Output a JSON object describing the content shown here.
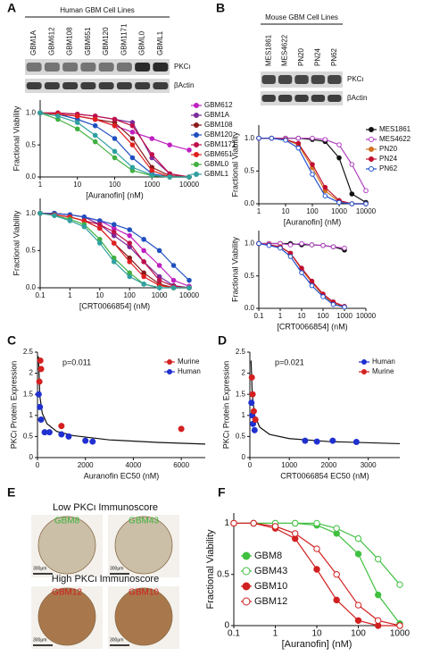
{
  "panel_labels": [
    "A",
    "B",
    "C",
    "D",
    "E",
    "F"
  ],
  "blots": [
    {
      "title": "Human GBM Cell Lines",
      "lanes": [
        "GBM1A",
        "GBM612",
        "GBM108",
        "GBM651",
        "GBM120",
        "GBM1171",
        "GBML0",
        "GBML1"
      ],
      "rows": [
        "PKCι",
        "βActin"
      ]
    },
    {
      "title": "Mouse GBM Cell Lines",
      "lanes": [
        "MES1861",
        "MES4622",
        "PN20",
        "PN24",
        "PN62"
      ],
      "rows": [
        "PKCι",
        "βActin"
      ]
    }
  ],
  "ihc": {
    "groups": [
      {
        "title": "Low PKCι Immunoscore",
        "color": "#3cb43c",
        "samples": [
          "GBM8",
          "GBM43"
        ]
      },
      {
        "title": "High PKCι Immunoscore",
        "color": "#d02020",
        "samples": [
          "GBM12",
          "GBM10"
        ]
      }
    ],
    "scale_bar": "300μm"
  },
  "chart_data": [
    {
      "type": "line",
      "xscale": "log",
      "xlabel": "[Auranofin] (nM)",
      "ylabel": "Fractional Viability",
      "legend": "right",
      "xlim": [
        1,
        10000
      ],
      "xticks": [
        1,
        10,
        100,
        1000,
        10000
      ],
      "ylim": [
        0,
        1.2
      ],
      "yticks": [
        {
          "value": 0,
          "label": "0.0"
        },
        {
          "value": 0.5,
          "label": "0.5"
        },
        {
          "value": 1,
          "label": "1.0"
        }
      ],
      "x": [
        1,
        3,
        10,
        30,
        100,
        300,
        1000,
        3000,
        10000
      ],
      "series": [
        {
          "name": "GBM612",
          "color": "#c020c0",
          "filled": true,
          "values": [
            1.0,
            0.98,
            0.95,
            0.9,
            0.8,
            0.7,
            0.6,
            0.5,
            0.42
          ]
        },
        {
          "name": "GBM1A",
          "color": "#7a2a9a",
          "filled": true,
          "values": [
            1.0,
            1.0,
            0.98,
            0.95,
            0.9,
            0.85,
            0.3,
            0.05,
            0
          ]
        },
        {
          "name": "GBM108",
          "color": "#8b1a1a",
          "filled": true,
          "values": [
            1.0,
            0.98,
            0.95,
            0.9,
            0.85,
            0.6,
            0.15,
            0.02,
            0
          ]
        },
        {
          "name": "GBM120",
          "color": "#2050c0",
          "filled": true,
          "values": [
            1.0,
            0.98,
            0.9,
            0.8,
            0.6,
            0.3,
            0.05,
            0,
            0
          ]
        },
        {
          "name": "GBM1171",
          "color": "#c0104a",
          "filled": true,
          "values": [
            1.0,
            1.0,
            0.98,
            0.95,
            0.9,
            0.8,
            0.35,
            0.05,
            0
          ]
        },
        {
          "name": "GBM651",
          "color": "#e02020",
          "filled": true,
          "values": [
            1.0,
            0.98,
            0.95,
            0.9,
            0.8,
            0.5,
            0.1,
            0,
            0
          ]
        },
        {
          "name": "GBML0",
          "color": "#40b040",
          "filled": true,
          "values": [
            1.0,
            0.9,
            0.75,
            0.55,
            0.3,
            0.1,
            0.02,
            0,
            0
          ]
        },
        {
          "name": "GBML1",
          "color": "#30a0a0",
          "filled": true,
          "values": [
            1.0,
            0.95,
            0.85,
            0.65,
            0.4,
            0.15,
            0.03,
            0,
            0
          ]
        }
      ]
    },
    {
      "type": "line",
      "xscale": "log",
      "xlabel": "[CRT0066854] (nM)",
      "ylabel": "Fractional Viability",
      "xlim": [
        0.1,
        10000
      ],
      "xticks": [
        0.1,
        1,
        10,
        100,
        1000,
        10000
      ],
      "ylim": [
        0,
        1.2
      ],
      "yticks": [
        {
          "value": 0,
          "label": "0.0"
        },
        {
          "value": 0.5,
          "label": "0.5"
        },
        {
          "value": 1,
          "label": "1.0"
        }
      ],
      "x": [
        0.1,
        0.3,
        1,
        3,
        10,
        30,
        100,
        300,
        1000,
        3000,
        10000
      ],
      "series": [
        {
          "color": "#c020c0",
          "filled": true,
          "values": [
            1.0,
            1.0,
            0.98,
            0.95,
            0.9,
            0.8,
            0.7,
            0.5,
            0.3,
            0.1,
            0.02
          ]
        },
        {
          "color": "#7a2a9a",
          "filled": true,
          "values": [
            1.0,
            1.0,
            0.98,
            0.95,
            0.85,
            0.7,
            0.55,
            0.35,
            0.15,
            0.03,
            0
          ]
        },
        {
          "color": "#8b1a1a",
          "filled": true,
          "values": [
            1.0,
            0.98,
            0.95,
            0.9,
            0.8,
            0.6,
            0.4,
            0.2,
            0.05,
            0,
            0
          ]
        },
        {
          "color": "#2050c0",
          "filled": true,
          "values": [
            1.0,
            1.0,
            0.98,
            0.95,
            0.9,
            0.85,
            0.78,
            0.65,
            0.5,
            0.3,
            0.1
          ]
        },
        {
          "color": "#c0104a",
          "filled": true,
          "values": [
            1.0,
            0.98,
            0.95,
            0.9,
            0.85,
            0.75,
            0.6,
            0.35,
            0.1,
            0.02,
            0
          ]
        },
        {
          "color": "#e02020",
          "filled": true,
          "values": [
            1.0,
            0.98,
            0.95,
            0.9,
            0.8,
            0.6,
            0.35,
            0.15,
            0.03,
            0,
            0
          ]
        },
        {
          "color": "#40b040",
          "filled": true,
          "values": [
            1.0,
            0.97,
            0.92,
            0.85,
            0.65,
            0.4,
            0.2,
            0.05,
            0,
            0,
            0
          ]
        },
        {
          "color": "#30a0a0",
          "filled": true,
          "values": [
            1.0,
            0.97,
            0.9,
            0.82,
            0.6,
            0.35,
            0.15,
            0.05,
            0,
            0,
            0
          ]
        }
      ]
    },
    {
      "type": "line",
      "xscale": "log",
      "xlabel": "[Auranofin] (nM)",
      "ylabel": "Fractional Viability",
      "legend": "right",
      "xlim": [
        1,
        10000
      ],
      "xticks": [
        1,
        10,
        100,
        1000,
        10000
      ],
      "ylim": [
        0,
        1.2
      ],
      "yticks": [
        {
          "value": 0,
          "label": "0.0"
        },
        {
          "value": 0.5,
          "label": "0.5"
        },
        {
          "value": 1,
          "label": "1.0"
        }
      ],
      "x": [
        1,
        3,
        10,
        30,
        100,
        300,
        1000,
        3000,
        10000
      ],
      "series": [
        {
          "name": "MES1861",
          "color": "#111111",
          "filled": true,
          "values": [
            1,
            1,
            1,
            1,
            0.98,
            0.95,
            0.7,
            0.15,
            0.02
          ]
        },
        {
          "name": "MES4622",
          "color": "#b040c0",
          "filled": false,
          "values": [
            1,
            1,
            1,
            1,
            1,
            0.98,
            0.9,
            0.6,
            0.2
          ]
        },
        {
          "name": "PN20",
          "color": "#d07020",
          "filled": true,
          "values": [
            1,
            1,
            0.98,
            0.9,
            0.55,
            0.2,
            0.03,
            0,
            0
          ]
        },
        {
          "name": "PN24",
          "color": "#c01030",
          "filled": true,
          "values": [
            1,
            1,
            0.98,
            0.92,
            0.6,
            0.25,
            0.05,
            0,
            0
          ]
        },
        {
          "name": "PN62",
          "color": "#2050d0",
          "filled": false,
          "values": [
            1,
            1,
            0.97,
            0.85,
            0.45,
            0.12,
            0.02,
            0,
            0
          ]
        }
      ]
    },
    {
      "type": "line",
      "xscale": "log",
      "xlabel": "[CRT0066854] (nM)",
      "ylabel": "Fractional Viability",
      "xlim": [
        0.1,
        10000
      ],
      "xticks": [
        0.1,
        1,
        10,
        100,
        1000,
        10000
      ],
      "ylim": [
        0,
        1.2
      ],
      "yticks": [
        {
          "value": 0,
          "label": "0.0"
        },
        {
          "value": 0.5,
          "label": "0.5"
        },
        {
          "value": 1,
          "label": "1.0"
        }
      ],
      "x": [
        0.1,
        0.3,
        1,
        3,
        10,
        30,
        100,
        300,
        1000
      ],
      "series": [
        {
          "color": "#111111",
          "filled": true,
          "values": [
            1,
            1,
            1,
            1,
            0.98,
            0.98,
            0.97,
            0.95,
            0.9
          ]
        },
        {
          "color": "#b040c0",
          "filled": false,
          "values": [
            1,
            1,
            1,
            0.98,
            1,
            0.98,
            0.97,
            0.95,
            0.93
          ]
        },
        {
          "color": "#d07020",
          "filled": true,
          "values": [
            1,
            0.98,
            0.95,
            0.85,
            0.6,
            0.4,
            0.2,
            0.08,
            0.02
          ]
        },
        {
          "color": "#c01030",
          "filled": true,
          "values": [
            1,
            0.98,
            0.95,
            0.85,
            0.62,
            0.42,
            0.22,
            0.1,
            0.03
          ]
        },
        {
          "color": "#2050d0",
          "filled": false,
          "values": [
            1,
            0.97,
            0.93,
            0.8,
            0.55,
            0.35,
            0.18,
            0.06,
            0.02
          ]
        }
      ]
    },
    {
      "type": "scatter",
      "xlabel": "Auranofin EC50 (nM)",
      "ylabel": "PKCι Protein Expression",
      "legend": "upper right",
      "annotation": "p=0.011",
      "xlim": [
        0,
        7000
      ],
      "xticks": [
        0,
        2000,
        4000,
        6000
      ],
      "ylim": [
        0,
        2.5
      ],
      "yticks": [
        0,
        0.5,
        1,
        1.5,
        2,
        2.5
      ],
      "series": [
        {
          "name": "Murine",
          "color": "#d42020",
          "filled": true,
          "x": [
            80,
            120,
            150,
            1000,
            6000
          ],
          "values": [
            1.8,
            2.3,
            2.1,
            0.75,
            0.68
          ]
        },
        {
          "name": "Human",
          "color": "#2030d0",
          "filled": true,
          "x": [
            50,
            100,
            150,
            300,
            500,
            1000,
            1300,
            2000,
            2300
          ],
          "values": [
            1.5,
            1.2,
            0.9,
            0.6,
            0.6,
            0.55,
            0.5,
            0.4,
            0.38
          ]
        }
      ],
      "fit": {
        "color": "#111111",
        "x": [
          40,
          100,
          200,
          400,
          800,
          1500,
          3000,
          5000,
          7000
        ],
        "values": [
          2.4,
          1.45,
          1.05,
          0.8,
          0.62,
          0.52,
          0.42,
          0.36,
          0.32
        ]
      }
    },
    {
      "type": "scatter",
      "xlabel": "CRT0066854 EC50 (nM)",
      "ylabel": "PKCι Protein Expression",
      "legend": "upper right",
      "annotation": "p=0.021",
      "xlim": [
        0,
        3800
      ],
      "xticks": [
        0,
        1000,
        2000,
        3000
      ],
      "ylim": [
        0,
        2.5
      ],
      "yticks": [
        0,
        0.5,
        1,
        1.5,
        2,
        2.5
      ],
      "series": [
        {
          "name": "Human",
          "color": "#2030d0",
          "filled": true,
          "x": [
            40,
            60,
            80,
            120,
            1400,
            1700,
            2100,
            2700
          ],
          "values": [
            1.3,
            1.0,
            0.8,
            0.65,
            0.4,
            0.38,
            0.4,
            0.37
          ]
        },
        {
          "name": "Murine",
          "color": "#d42020",
          "filled": true,
          "x": [
            50,
            70,
            100,
            140
          ],
          "values": [
            1.9,
            1.5,
            1.1,
            0.9
          ]
        }
      ],
      "fit": {
        "color": "#111111",
        "x": [
          30,
          60,
          120,
          250,
          500,
          1000,
          2000,
          3800
        ],
        "values": [
          2.3,
          1.5,
          1.0,
          0.72,
          0.55,
          0.45,
          0.38,
          0.33
        ]
      }
    },
    {
      "type": "line",
      "xscale": "log",
      "xlabel": "[Auranofin] (nM)",
      "ylabel": "Fractional Viability",
      "legend": "inside",
      "xlim": [
        0.1,
        1000
      ],
      "xticks": [
        0.1,
        1,
        10,
        100,
        1000
      ],
      "ylim": [
        0,
        1.1
      ],
      "yticks": [
        0,
        0.5,
        1
      ],
      "x": [
        0.1,
        0.3,
        1,
        3,
        10,
        30,
        100,
        300,
        1000
      ],
      "series": [
        {
          "name": "GBM8",
          "color": "#40c040",
          "filled": true,
          "values": [
            1,
            1,
            1,
            1,
            0.98,
            0.9,
            0.7,
            0.3,
            0.02
          ]
        },
        {
          "name": "GBM43",
          "color": "#40c040",
          "filled": false,
          "values": [
            1,
            1,
            1,
            1,
            1,
            0.95,
            0.85,
            0.65,
            0.4
          ]
        },
        {
          "name": "GBM10",
          "color": "#d02020",
          "filled": true,
          "values": [
            1,
            1,
            0.95,
            0.85,
            0.55,
            0.25,
            0.05,
            0,
            0
          ]
        },
        {
          "name": "GBM12",
          "color": "#d02020",
          "filled": false,
          "values": [
            1,
            1,
            0.97,
            0.9,
            0.75,
            0.5,
            0.2,
            0.05,
            0
          ]
        }
      ]
    }
  ]
}
